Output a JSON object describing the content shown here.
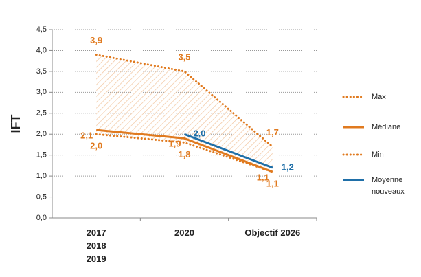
{
  "chart_data": {
    "type": "line",
    "y_label": "IFT",
    "categories": [
      "2017\n2018\n2019",
      "2020",
      "Objectif 2026"
    ],
    "ylim": [
      0,
      4.5
    ],
    "yticks": [
      {
        "value": 0,
        "label": "0,0"
      },
      {
        "value": 0.5,
        "label": "0,5"
      },
      {
        "value": 1,
        "label": "1,0"
      },
      {
        "value": 1.5,
        "label": "1,5"
      },
      {
        "value": 2,
        "label": "2,0"
      },
      {
        "value": 2.5,
        "label": "2,5"
      },
      {
        "value": 3,
        "label": "3,0"
      },
      {
        "value": 3.5,
        "label": "3,5"
      },
      {
        "value": 4,
        "label": "4,0"
      },
      {
        "value": 4.5,
        "label": "4,5"
      }
    ],
    "grid": true,
    "legend": "right",
    "range_fill": true,
    "series": [
      {
        "name": "Max",
        "color": "#e07a1f",
        "style": "dotted",
        "values": [
          3.9,
          3.5,
          1.7
        ],
        "value_labels": [
          "3,9",
          "3,5",
          "1,7"
        ]
      },
      {
        "name": "Médiane",
        "color": "#e07a1f",
        "style": "solid",
        "values": [
          2.1,
          1.9,
          1.1
        ],
        "value_labels": [
          "2,1",
          "1,9",
          "1,1"
        ]
      },
      {
        "name": "Min",
        "color": "#e07a1f",
        "style": "dotted",
        "values": [
          2.0,
          1.8,
          1.1
        ],
        "value_labels": [
          "2,0",
          "1,8",
          "1,1"
        ]
      },
      {
        "name": "Moyenne nouveaux",
        "color": "#1f6fa8",
        "style": "solid",
        "values": [
          null,
          2.0,
          1.2
        ],
        "value_labels": [
          null,
          "2,0",
          "1,2"
        ]
      }
    ]
  }
}
